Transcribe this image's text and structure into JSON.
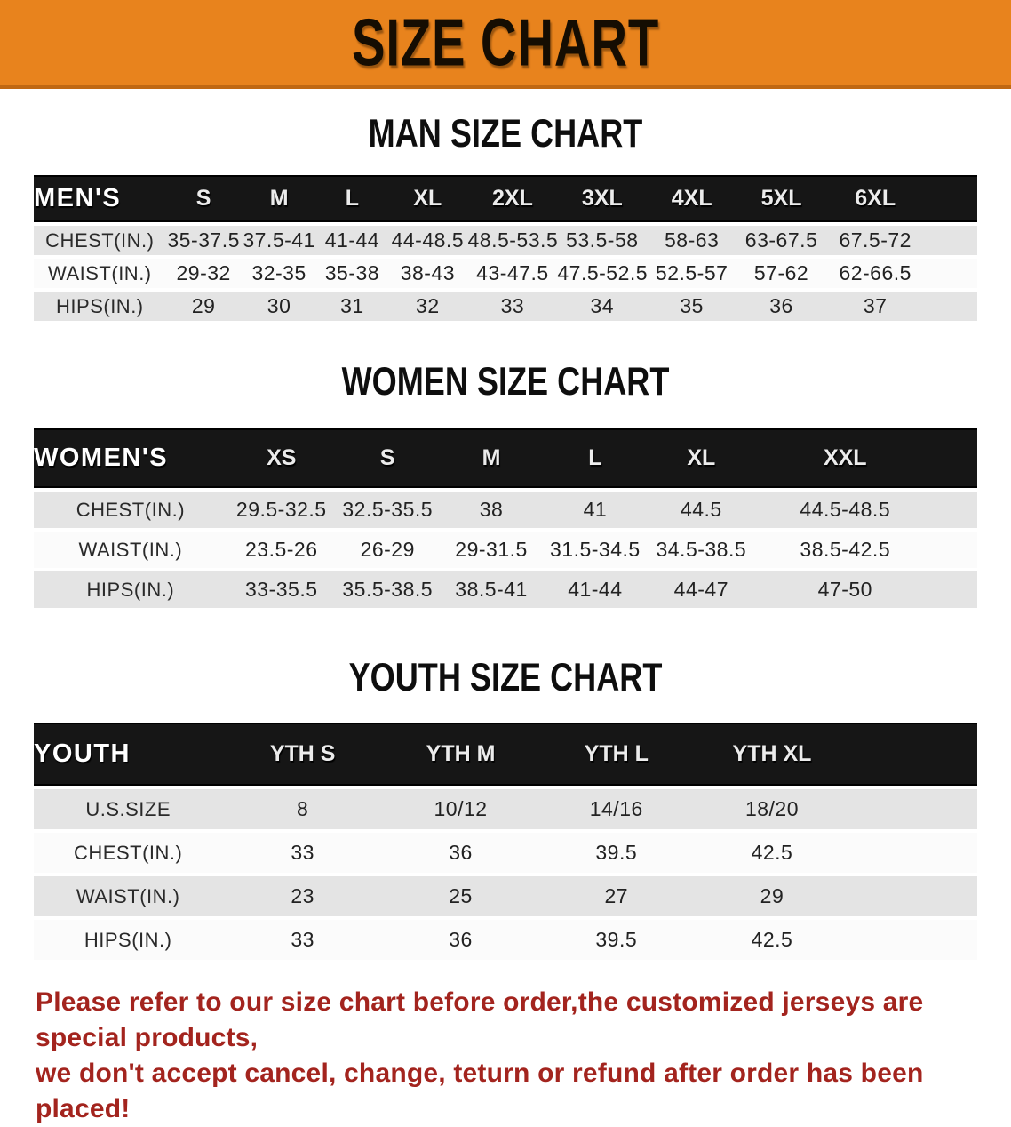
{
  "banner": {
    "title": "SIZE CHART"
  },
  "colors": {
    "banner_bg": "#E8831D",
    "banner_edge": "#C06812",
    "table_header_bg": "#161616",
    "row_shaded": "#E4E4E4",
    "row_plain": "#FBFBFB",
    "note_red": "#A3241E"
  },
  "sections": [
    {
      "heading": "MAN SIZE CHART",
      "table": {
        "label": "MEN'S",
        "columns": [
          "S",
          "M",
          "L",
          "XL",
          "2XL",
          "3XL",
          "4XL",
          "5XL",
          "6XL"
        ],
        "rows": [
          {
            "label": "CHEST(IN.)",
            "values": [
              "35-37.5",
              "37.5-41",
              "41-44",
              "44-48.5",
              "48.5-53.5",
              "53.5-58",
              "58-63",
              "63-67.5",
              "67.5-72"
            ]
          },
          {
            "label": "WAIST(IN.)",
            "values": [
              "29-32",
              "32-35",
              "35-38",
              "38-43",
              "43-47.5",
              "47.5-52.5",
              "52.5-57",
              "57-62",
              "62-66.5"
            ]
          },
          {
            "label": "HIPS(IN.)",
            "values": [
              "29",
              "30",
              "31",
              "32",
              "33",
              "34",
              "35",
              "36",
              "37"
            ]
          }
        ]
      }
    },
    {
      "heading": "WOMEN SIZE CHART",
      "table": {
        "label": "WOMEN'S",
        "columns": [
          "XS",
          "S",
          "M",
          "L",
          "XL",
          "XXL"
        ],
        "rows": [
          {
            "label": "CHEST(IN.)",
            "values": [
              "29.5-32.5",
              "32.5-35.5",
              "38",
              "41",
              "44.5",
              "44.5-48.5"
            ]
          },
          {
            "label": "WAIST(IN.)",
            "values": [
              "23.5-26",
              "26-29",
              "29-31.5",
              "31.5-34.5",
              "34.5-38.5",
              "38.5-42.5"
            ]
          },
          {
            "label": "HIPS(IN.)",
            "values": [
              "33-35.5",
              "35.5-38.5",
              "38.5-41",
              "41-44",
              "44-47",
              "47-50"
            ]
          }
        ]
      }
    },
    {
      "heading": "YOUTH SIZE CHART",
      "table": {
        "label": "YOUTH",
        "columns": [
          "YTH S",
          "YTH M",
          "YTH L",
          "YTH XL"
        ],
        "rows": [
          {
            "label": "U.S.SIZE",
            "values": [
              "8",
              "10/12",
              "14/16",
              "18/20"
            ]
          },
          {
            "label": "CHEST(IN.)",
            "values": [
              "33",
              "36",
              "39.5",
              "42.5"
            ]
          },
          {
            "label": "WAIST(IN.)",
            "values": [
              "23",
              "25",
              "27",
              "29"
            ]
          },
          {
            "label": "HIPS(IN.)",
            "values": [
              "33",
              "36",
              "39.5",
              "42.5"
            ]
          }
        ]
      }
    }
  ],
  "footnote": {
    "line1": "Please refer to our size chart before order,the customized jerseys are special products,",
    "line2": "we don't accept cancel, change, teturn or refund after order has been placed!"
  }
}
